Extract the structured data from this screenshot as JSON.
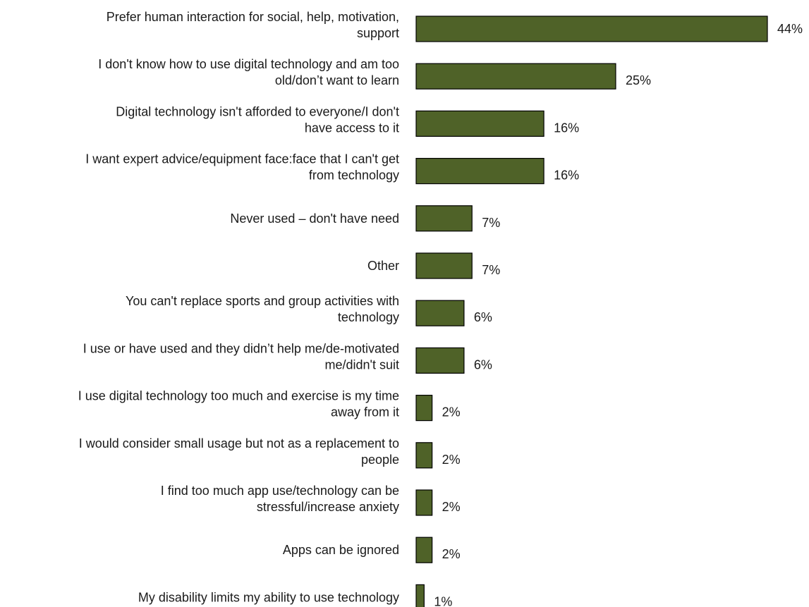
{
  "chart_data": {
    "type": "bar",
    "orientation": "horizontal",
    "categories": [
      [
        "Prefer human interaction for social, help, motivation,",
        "support"
      ],
      [
        "I don't know how to use digital technology and am too",
        "old/don’t want to learn"
      ],
      [
        "Digital technology isn't afforded to everyone/I don't",
        "have access to it"
      ],
      [
        "I want expert advice/equipment face:face that I can't get",
        "from technology"
      ],
      [
        "Never used – don't have need"
      ],
      [
        "Other"
      ],
      [
        "You can't replace sports and group activities with",
        "technology"
      ],
      [
        "I use or have used and they didn’t help me/de-motivated",
        "me/didn't suit"
      ],
      [
        "I use digital technology too much and exercise is my time",
        "away from it"
      ],
      [
        "I would consider small usage but not as a replacement to",
        "people"
      ],
      [
        "I find too much app use/technology can be",
        "stressful/increase anxiety"
      ],
      [
        "Apps can be ignored"
      ],
      [
        "My disability limits my ability to use technology"
      ]
    ],
    "values": [
      44,
      25,
      16,
      16,
      7,
      7,
      6,
      6,
      2,
      2,
      2,
      2,
      1
    ],
    "value_labels": [
      "44%",
      "25%",
      "16%",
      "16%",
      "7%",
      "7%",
      "6%",
      "6%",
      "2%",
      "2%",
      "2%",
      "2%",
      "1%"
    ],
    "unit": "%",
    "xlim": [
      0,
      44
    ],
    "bar_color": "#4f6228",
    "bar_edge_color": "#000000",
    "grid": false,
    "axes_visible": false
  }
}
